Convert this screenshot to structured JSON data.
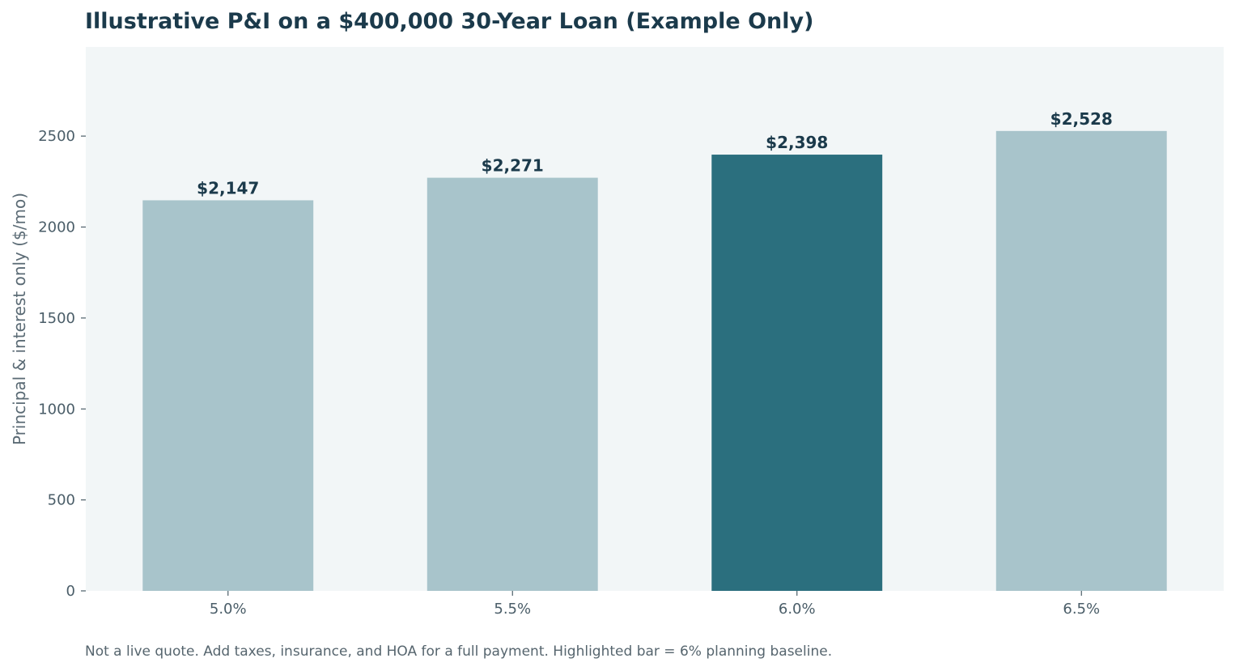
{
  "chart_data": {
    "type": "bar",
    "title": "Illustrative P&I on a $400,000 30-Year Loan (Example Only)",
    "xlabel": "",
    "ylabel": "Principal & interest only ($/mo)",
    "categories": [
      "5.0%",
      "5.5%",
      "6.0%",
      "6.5%"
    ],
    "values": [
      2147,
      2271,
      2398,
      2528
    ],
    "value_labels": [
      "$2,147",
      "$2,271",
      "$2,398",
      "$2,528"
    ],
    "highlight_index": 2,
    "ylim": [
      0,
      2990
    ],
    "yticks": [
      0,
      500,
      1000,
      1500,
      2000,
      2500
    ],
    "ytick_labels": [
      "0",
      "500",
      "1000",
      "1500",
      "2000",
      "2500"
    ],
    "grid": false,
    "legend": "none",
    "footnote": "Not a live quote. Add taxes, insurance, and HOA for a full payment. Highlighted bar = 6% planning baseline.",
    "colors": {
      "bar": "#a8c4cb",
      "highlight_bar": "#2b6f7e",
      "plot_background": "#f2f6f7",
      "title": "#1b3a4b",
      "value_label": "#1b3a4b",
      "tick_text": "#4a5d68",
      "axis_label": "#5b6b75",
      "footnote": "#56656e"
    }
  }
}
